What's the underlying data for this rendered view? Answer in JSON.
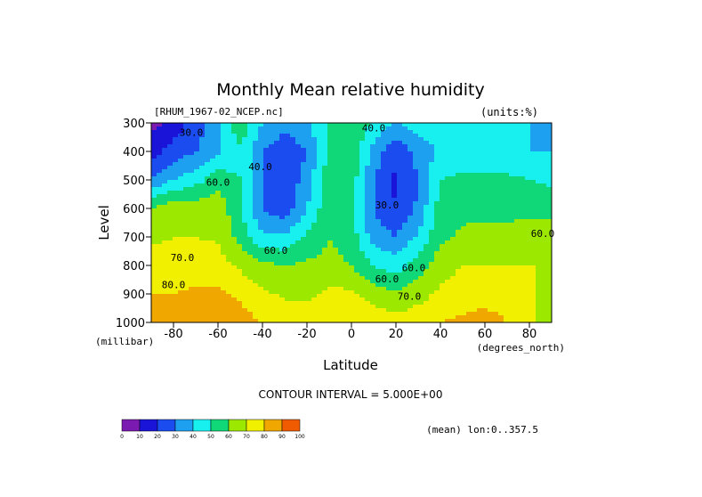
{
  "chart_data": {
    "type": "heatmap",
    "subtype": "filled-contour",
    "title": "Monthly Mean relative humidity",
    "dataset_label": "[RHUM_1967-02_NCEP.nc]",
    "units_label": "(units:%)",
    "xlabel": "Latitude",
    "x_units": "(degrees_north)",
    "ylabel": "Level",
    "y_units": "(millibar)",
    "xlim": [
      -90,
      90
    ],
    "ylim": [
      1000,
      300
    ],
    "y_inverted": true,
    "x_ticks": [
      -80,
      -60,
      -40,
      -20,
      0,
      20,
      40,
      60,
      80
    ],
    "y_ticks": [
      300,
      400,
      500,
      600,
      700,
      800,
      900,
      1000
    ],
    "x_grid": [
      -90,
      -80,
      -70,
      -60,
      -50,
      -40,
      -30,
      -20,
      -10,
      0,
      10,
      20,
      30,
      40,
      50,
      60,
      70,
      80,
      90
    ],
    "y_grid": [
      300,
      400,
      500,
      600,
      700,
      800,
      900,
      1000
    ],
    "z_estimated_grid": [
      [
        6,
        14,
        24,
        38,
        58,
        40,
        33,
        38,
        52,
        60,
        48,
        40,
        45,
        45,
        45,
        44,
        43,
        40,
        38
      ],
      [
        16,
        24,
        30,
        38,
        48,
        30,
        24,
        30,
        52,
        58,
        36,
        22,
        34,
        42,
        44,
        44,
        42,
        40,
        40
      ],
      [
        32,
        40,
        46,
        56,
        50,
        30,
        22,
        34,
        57,
        56,
        30,
        18,
        30,
        50,
        52,
        52,
        52,
        50,
        48
      ],
      [
        60,
        66,
        66,
        66,
        52,
        28,
        24,
        40,
        58,
        55,
        30,
        20,
        32,
        55,
        57,
        56,
        58,
        58,
        56
      ],
      [
        68,
        70,
        70,
        69,
        56,
        42,
        42,
        52,
        60,
        55,
        35,
        30,
        42,
        58,
        62,
        65,
        62,
        64,
        65
      ],
      [
        74,
        74,
        74,
        74,
        68,
        62,
        60,
        62,
        63,
        60,
        50,
        45,
        55,
        66,
        70,
        70,
        70,
        70,
        70
      ],
      [
        80,
        80,
        82,
        82,
        78,
        72,
        68,
        68,
        72,
        72,
        65,
        62,
        66,
        72,
        74,
        76,
        76,
        72,
        60
      ],
      [
        84,
        86,
        86,
        88,
        84,
        80,
        78,
        76,
        78,
        80,
        76,
        74,
        76,
        80,
        82,
        84,
        80,
        75,
        62
      ]
    ],
    "contour_labels": [
      {
        "text": "30.0",
        "lat": -72,
        "p": 345
      },
      {
        "text": "40.0",
        "lat": -41,
        "p": 465
      },
      {
        "text": "60.0",
        "lat": -60,
        "p": 520
      },
      {
        "text": "40.0",
        "lat": 10,
        "p": 330
      },
      {
        "text": "30.0",
        "lat": 16,
        "p": 600
      },
      {
        "text": "60.0",
        "lat": -34,
        "p": 760
      },
      {
        "text": "70.0",
        "lat": -76,
        "p": 785
      },
      {
        "text": "80.0",
        "lat": -80,
        "p": 880
      },
      {
        "text": "60.0",
        "lat": 28,
        "p": 820
      },
      {
        "text": "60.0",
        "lat": 16,
        "p": 860
      },
      {
        "text": "70.0",
        "lat": 26,
        "p": 920
      },
      {
        "text": "60.0",
        "lat": 86,
        "p": 700
      }
    ],
    "colorbar": {
      "levels": [
        0,
        10,
        20,
        30,
        40,
        50,
        60,
        70,
        80,
        90,
        100
      ],
      "colors": [
        "#7a1ab0",
        "#1a14d8",
        "#1a4cf0",
        "#1ea0f0",
        "#18f0f0",
        "#10d878",
        "#9ce800",
        "#f0f000",
        "#f0a800",
        "#f05a00",
        "#e80000"
      ]
    },
    "contour_interval_text": "CONTOUR INTERVAL = 5.000E+00",
    "footer_note": "(mean) lon:0..357.5",
    "grid": false,
    "legend_position": "bottom-left"
  }
}
